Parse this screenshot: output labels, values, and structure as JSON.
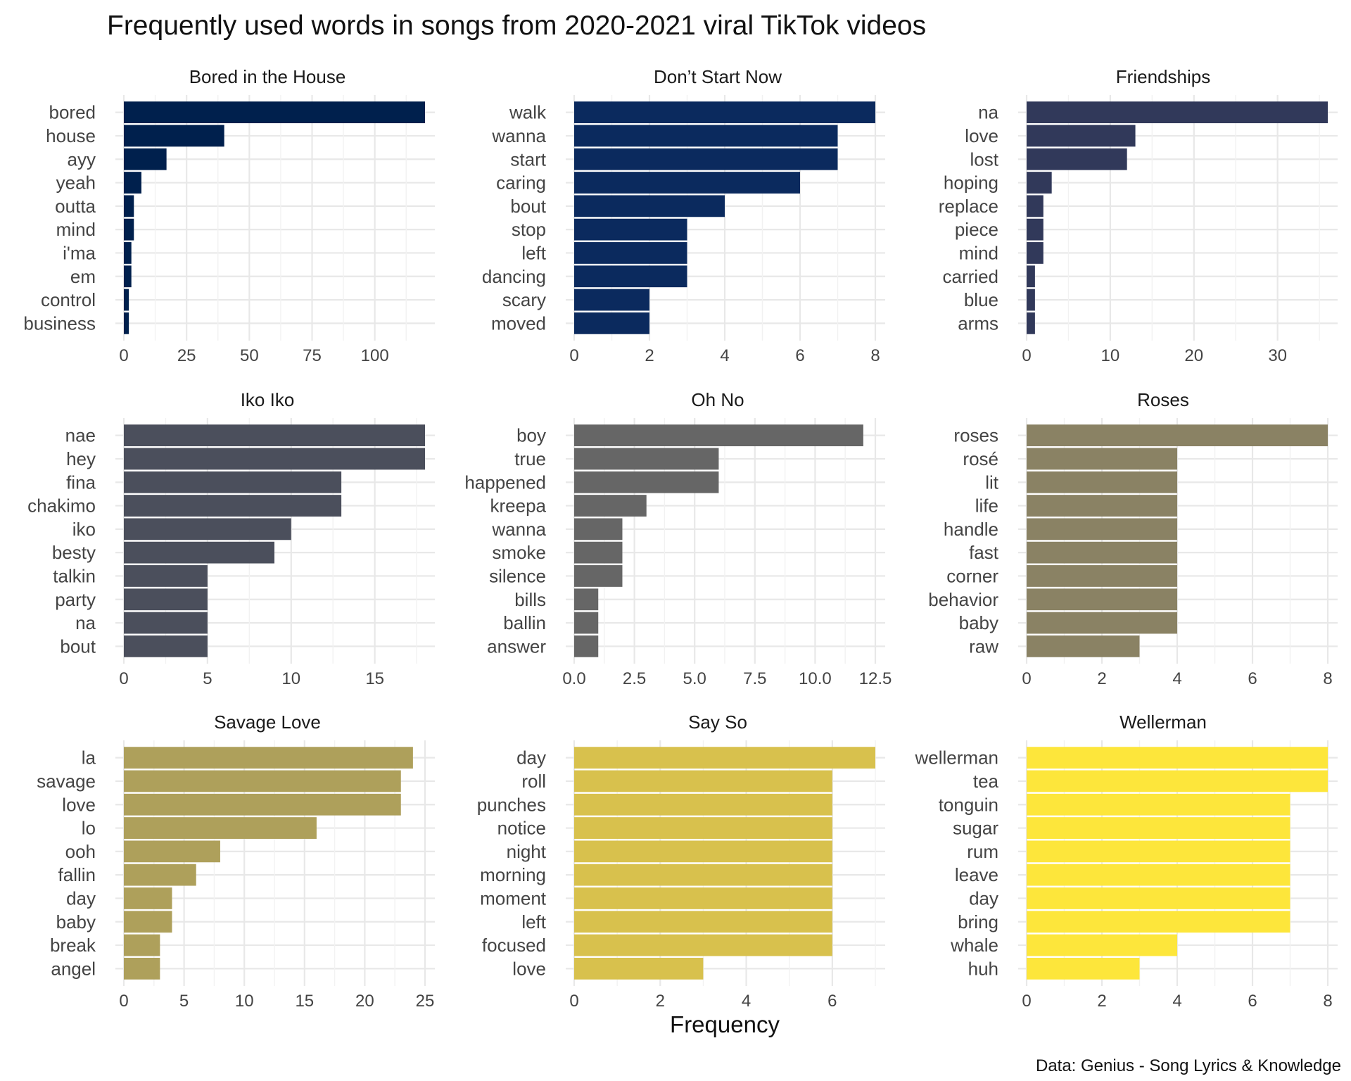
{
  "chart_data": {
    "type": "bar",
    "orientation": "horizontal",
    "title": "Frequently used words in songs from 2020-2021 viral TikTok videos",
    "xlabel": "Frequency",
    "caption": "Data: Genius - Song Lyrics & Knowledge",
    "grid": true,
    "legend": "none",
    "panels": [
      {
        "title": "Bored in the House",
        "color": "#00204d",
        "categories": [
          "bored",
          "house",
          "ayy",
          "yeah",
          "outta",
          "mind",
          "i'ma",
          "em",
          "control",
          "business"
        ],
        "values": [
          120,
          40,
          17,
          7,
          4,
          4,
          3,
          3,
          2,
          2
        ],
        "xlim": [
          0,
          120
        ],
        "ticks": [
          0,
          25,
          50,
          75,
          100
        ],
        "tick_labels": [
          "0",
          "25",
          "50",
          "75",
          "100"
        ]
      },
      {
        "title": "Don’t Start Now",
        "color": "#0b2a5e",
        "categories": [
          "walk",
          "wanna",
          "start",
          "caring",
          "bout",
          "stop",
          "left",
          "dancing",
          "scary",
          "moved"
        ],
        "values": [
          8,
          7,
          7,
          6,
          4,
          3,
          3,
          3,
          2,
          2
        ],
        "xlim": [
          0,
          8
        ],
        "ticks": [
          0,
          2,
          4,
          6,
          8
        ],
        "tick_labels": [
          "0",
          "2",
          "4",
          "6",
          "8"
        ]
      },
      {
        "title": "Friendships",
        "color": "#31395a",
        "categories": [
          "na",
          "love",
          "lost",
          "hoping",
          "replace",
          "piece",
          "mind",
          "carried",
          "blue",
          "arms"
        ],
        "values": [
          36,
          13,
          12,
          3,
          2,
          2,
          2,
          1,
          1,
          1
        ],
        "xlim": [
          0,
          36
        ],
        "ticks": [
          0,
          10,
          20,
          30
        ],
        "tick_labels": [
          "0",
          "10",
          "20",
          "30"
        ]
      },
      {
        "title": "Iko Iko",
        "color": "#4b4f5c",
        "categories": [
          "nae",
          "hey",
          "fina",
          "chakimo",
          "iko",
          "besty",
          "talkin",
          "party",
          "na",
          "bout"
        ],
        "values": [
          18,
          18,
          13,
          13,
          10,
          9,
          5,
          5,
          5,
          5
        ],
        "xlim": [
          0,
          18
        ],
        "ticks": [
          0,
          5,
          10,
          15
        ],
        "tick_labels": [
          "0",
          "5",
          "10",
          "15"
        ]
      },
      {
        "title": "Oh No",
        "color": "#666666",
        "categories": [
          "boy",
          "true",
          "happened",
          "kreepa",
          "wanna",
          "smoke",
          "silence",
          "bills",
          "ballin",
          "answer"
        ],
        "values": [
          12,
          6,
          6,
          3,
          2,
          2,
          2,
          1,
          1,
          1
        ],
        "xlim": [
          0,
          12.5
        ],
        "ticks": [
          0,
          2.5,
          5,
          7.5,
          10,
          12.5
        ],
        "tick_labels": [
          "0.0",
          "2.5",
          "5.0",
          "7.5",
          "10.0",
          "12.5"
        ]
      },
      {
        "title": "Roses",
        "color": "#8a8264",
        "categories": [
          "roses",
          "rosé",
          "lit",
          "life",
          "handle",
          "fast",
          "corner",
          "behavior",
          "baby",
          "raw"
        ],
        "values": [
          8,
          4,
          4,
          4,
          4,
          4,
          4,
          4,
          4,
          3
        ],
        "xlim": [
          0,
          8
        ],
        "ticks": [
          0,
          2,
          4,
          6,
          8
        ],
        "tick_labels": [
          "0",
          "2",
          "4",
          "6",
          "8"
        ]
      },
      {
        "title": "Savage Love",
        "color": "#aea05b",
        "categories": [
          "la",
          "savage",
          "love",
          "lo",
          "ooh",
          "fallin",
          "day",
          "baby",
          "break",
          "angel"
        ],
        "values": [
          24,
          23,
          23,
          16,
          8,
          6,
          4,
          4,
          3,
          3
        ],
        "xlim": [
          0,
          25
        ],
        "ticks": [
          0,
          5,
          10,
          15,
          20,
          25
        ],
        "tick_labels": [
          "0",
          "5",
          "10",
          "15",
          "20",
          "25"
        ]
      },
      {
        "title": "Say So",
        "color": "#d8c14d",
        "categories": [
          "day",
          "roll",
          "punches",
          "notice",
          "night",
          "morning",
          "moment",
          "left",
          "focused",
          "love"
        ],
        "values": [
          7,
          6,
          6,
          6,
          6,
          6,
          6,
          6,
          6,
          3
        ],
        "xlim": [
          0,
          7
        ],
        "ticks": [
          0,
          2,
          4,
          6
        ],
        "tick_labels": [
          "0",
          "2",
          "4",
          "6"
        ]
      },
      {
        "title": "Wellerman",
        "color": "#fde63b",
        "categories": [
          "wellerman",
          "tea",
          "tonguin",
          "sugar",
          "rum",
          "leave",
          "day",
          "bring",
          "whale",
          "huh"
        ],
        "values": [
          8,
          8,
          7,
          7,
          7,
          7,
          7,
          7,
          4,
          3
        ],
        "xlim": [
          0,
          8
        ],
        "ticks": [
          0,
          2,
          4,
          6,
          8
        ],
        "tick_labels": [
          "0",
          "2",
          "4",
          "6",
          "8"
        ]
      }
    ]
  }
}
